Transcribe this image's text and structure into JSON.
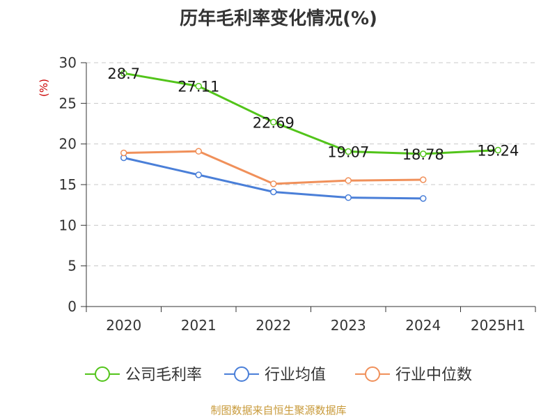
{
  "chart_data": {
    "type": "line",
    "title": "历年毛利率变化情况(%)",
    "ylabel": "(%)",
    "xlabel": "",
    "categories": [
      "2020",
      "2021",
      "2022",
      "2023",
      "2024",
      "2025H1"
    ],
    "ylim": [
      0,
      30
    ],
    "yticks": [
      0,
      5,
      10,
      15,
      20,
      25,
      30
    ],
    "grid": true,
    "legend_position": "bottom",
    "series": [
      {
        "name": "公司毛利率",
        "color": "#52c41a",
        "values": [
          28.7,
          27.11,
          22.69,
          19.07,
          18.78,
          19.24
        ],
        "labels": [
          "28.7",
          "27.11",
          "22.69",
          "19.07",
          "18.78",
          "19.24"
        ]
      },
      {
        "name": "行业均值",
        "color": "#4a7fd8",
        "values": [
          18.3,
          16.2,
          14.1,
          13.4,
          13.3,
          null
        ]
      },
      {
        "name": "行业中位数",
        "color": "#f0905a",
        "values": [
          18.9,
          19.1,
          15.1,
          15.5,
          15.6,
          null
        ]
      }
    ]
  },
  "footer": "制图数据来自恒生聚源数据库"
}
